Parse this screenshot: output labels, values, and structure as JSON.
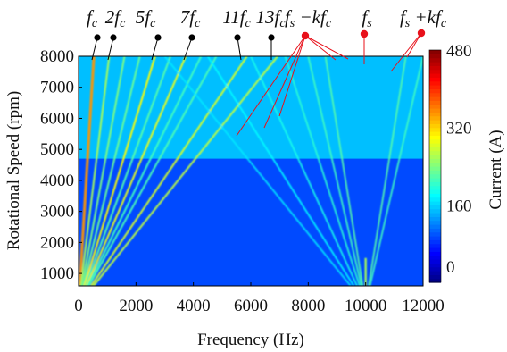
{
  "chart_data": {
    "type": "heatmap",
    "xlabel": "Frequency (Hz)",
    "ylabel": "Rotational Speed (rpm)",
    "colorbar_label": "Current (A)",
    "xlim": [
      0,
      12000
    ],
    "ylim": [
      600,
      8000
    ],
    "clim": [
      0,
      480
    ],
    "colormap": "jet",
    "x_ticks": [
      "0",
      "2000",
      "4000",
      "6000",
      "8000",
      "10000",
      "12000"
    ],
    "x_tick_values": [
      0,
      2000,
      4000,
      6000,
      8000,
      10000,
      12000
    ],
    "y_ticks": [
      "1000",
      "2000",
      "3000",
      "4000",
      "5000",
      "6000",
      "7000",
      "8000"
    ],
    "y_tick_values": [
      1000,
      2000,
      3000,
      4000,
      5000,
      6000,
      7000,
      8000
    ],
    "colorbar_ticks": [
      "0",
      "160",
      "320",
      "480"
    ],
    "colorbar_tick_values": [
      0,
      160,
      320,
      480
    ],
    "background_level": {
      "below_rpm_4700": 95,
      "above_rpm_4700": 150
    },
    "series": [
      {
        "annotation": "f_c",
        "x_at_8000rpm": 533,
        "level": 350,
        "marker": "black"
      },
      {
        "annotation": "2f_c",
        "x_at_8000rpm": 1067,
        "level": 260,
        "marker": "black"
      },
      {
        "x_at_8000rpm": 1600,
        "level": 240
      },
      {
        "x_at_8000rpm": 2133,
        "level": 230
      },
      {
        "annotation": "5f_c",
        "x_at_8000rpm": 2667,
        "level": 300,
        "marker": "black"
      },
      {
        "x_at_8000rpm": 3200,
        "level": 220
      },
      {
        "annotation": "7f_c",
        "x_at_8000rpm": 3733,
        "level": 290,
        "marker": "black"
      },
      {
        "x_at_8000rpm": 4267,
        "level": 210
      },
      {
        "x_at_8000rpm": 4800,
        "level": 215
      },
      {
        "annotation": "11f_c",
        "x_at_8000rpm": 5867,
        "level": 280,
        "marker": "black"
      },
      {
        "annotation": "13f_c",
        "x_at_8000rpm": 6933,
        "level": 270,
        "marker": "black"
      }
    ],
    "carrier_lines": {
      "f_s": 10000,
      "k_at_8000rpm": [
        {
          "x_minus": 8600,
          "x_plus": 11400,
          "level": 220
        },
        {
          "x_minus": 8000,
          "x_plus": 12000,
          "level": 210
        },
        {
          "x_minus": 7200,
          "level": 200
        },
        {
          "x_minus": 6000,
          "level": 190
        },
        {
          "x_minus": 4500,
          "level": 180
        },
        {
          "x_minus": 3000,
          "level": 170
        }
      ]
    },
    "annotations": [
      {
        "label_parts": [
          "f",
          "c",
          ""
        ],
        "marker": "black"
      },
      {
        "label_parts": [
          "2f",
          "c",
          ""
        ],
        "marker": "black"
      },
      {
        "label_parts": [
          "5f",
          "c",
          ""
        ],
        "marker": "black"
      },
      {
        "label_parts": [
          "7f",
          "c",
          ""
        ],
        "marker": "black"
      },
      {
        "label_parts": [
          "11f",
          "c",
          ""
        ],
        "marker": "black"
      },
      {
        "label_parts": [
          "13f",
          "c",
          ""
        ],
        "marker": "black"
      },
      {
        "label_parts": [
          "f",
          "s",
          " −kf",
          "c"
        ],
        "marker": "red"
      },
      {
        "label_parts": [
          "f",
          "s",
          ""
        ],
        "marker": "red"
      },
      {
        "label_parts": [
          "f",
          "s",
          " +kf",
          "c"
        ],
        "marker": "red"
      }
    ]
  },
  "colors": {
    "marker_red": "#e8101a",
    "marker_black": "#000000",
    "axis": "#000000"
  }
}
